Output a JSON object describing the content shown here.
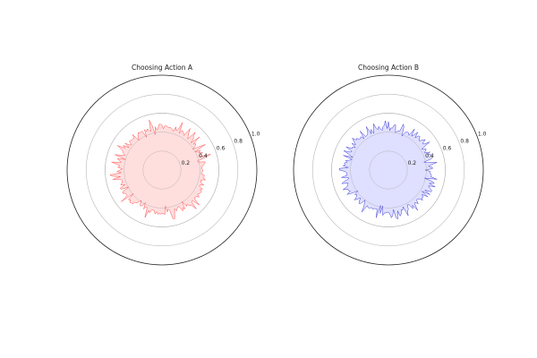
{
  "chart_data": [
    {
      "type": "area",
      "projection": "polar",
      "title": "Choosing Action A",
      "rlim": [
        0,
        1.0
      ],
      "rticks": [
        0.2,
        0.4,
        0.6,
        0.8,
        1.0
      ],
      "rtick_labels": [
        "0.2",
        "0.4",
        "0.6",
        "0.8",
        "1.0"
      ],
      "grid": true,
      "color": "#ff4d4d",
      "fill_color": "#ffdada",
      "radius_min": 0.38,
      "radius_max": 0.55,
      "radius_typical": 0.45,
      "n_points": 200
    },
    {
      "type": "area",
      "projection": "polar",
      "title": "Choosing Action B",
      "rlim": [
        0,
        1.0
      ],
      "rticks": [
        0.2,
        0.4,
        0.6,
        0.8,
        1.0
      ],
      "rtick_labels": [
        "0.2",
        "0.4",
        "0.6",
        "0.8",
        "1.0"
      ],
      "grid": true,
      "color": "#3b3bd8",
      "fill_color": "#dcdcff",
      "radius_min": 0.38,
      "radius_max": 0.53,
      "radius_typical": 0.45,
      "n_points": 200
    }
  ]
}
